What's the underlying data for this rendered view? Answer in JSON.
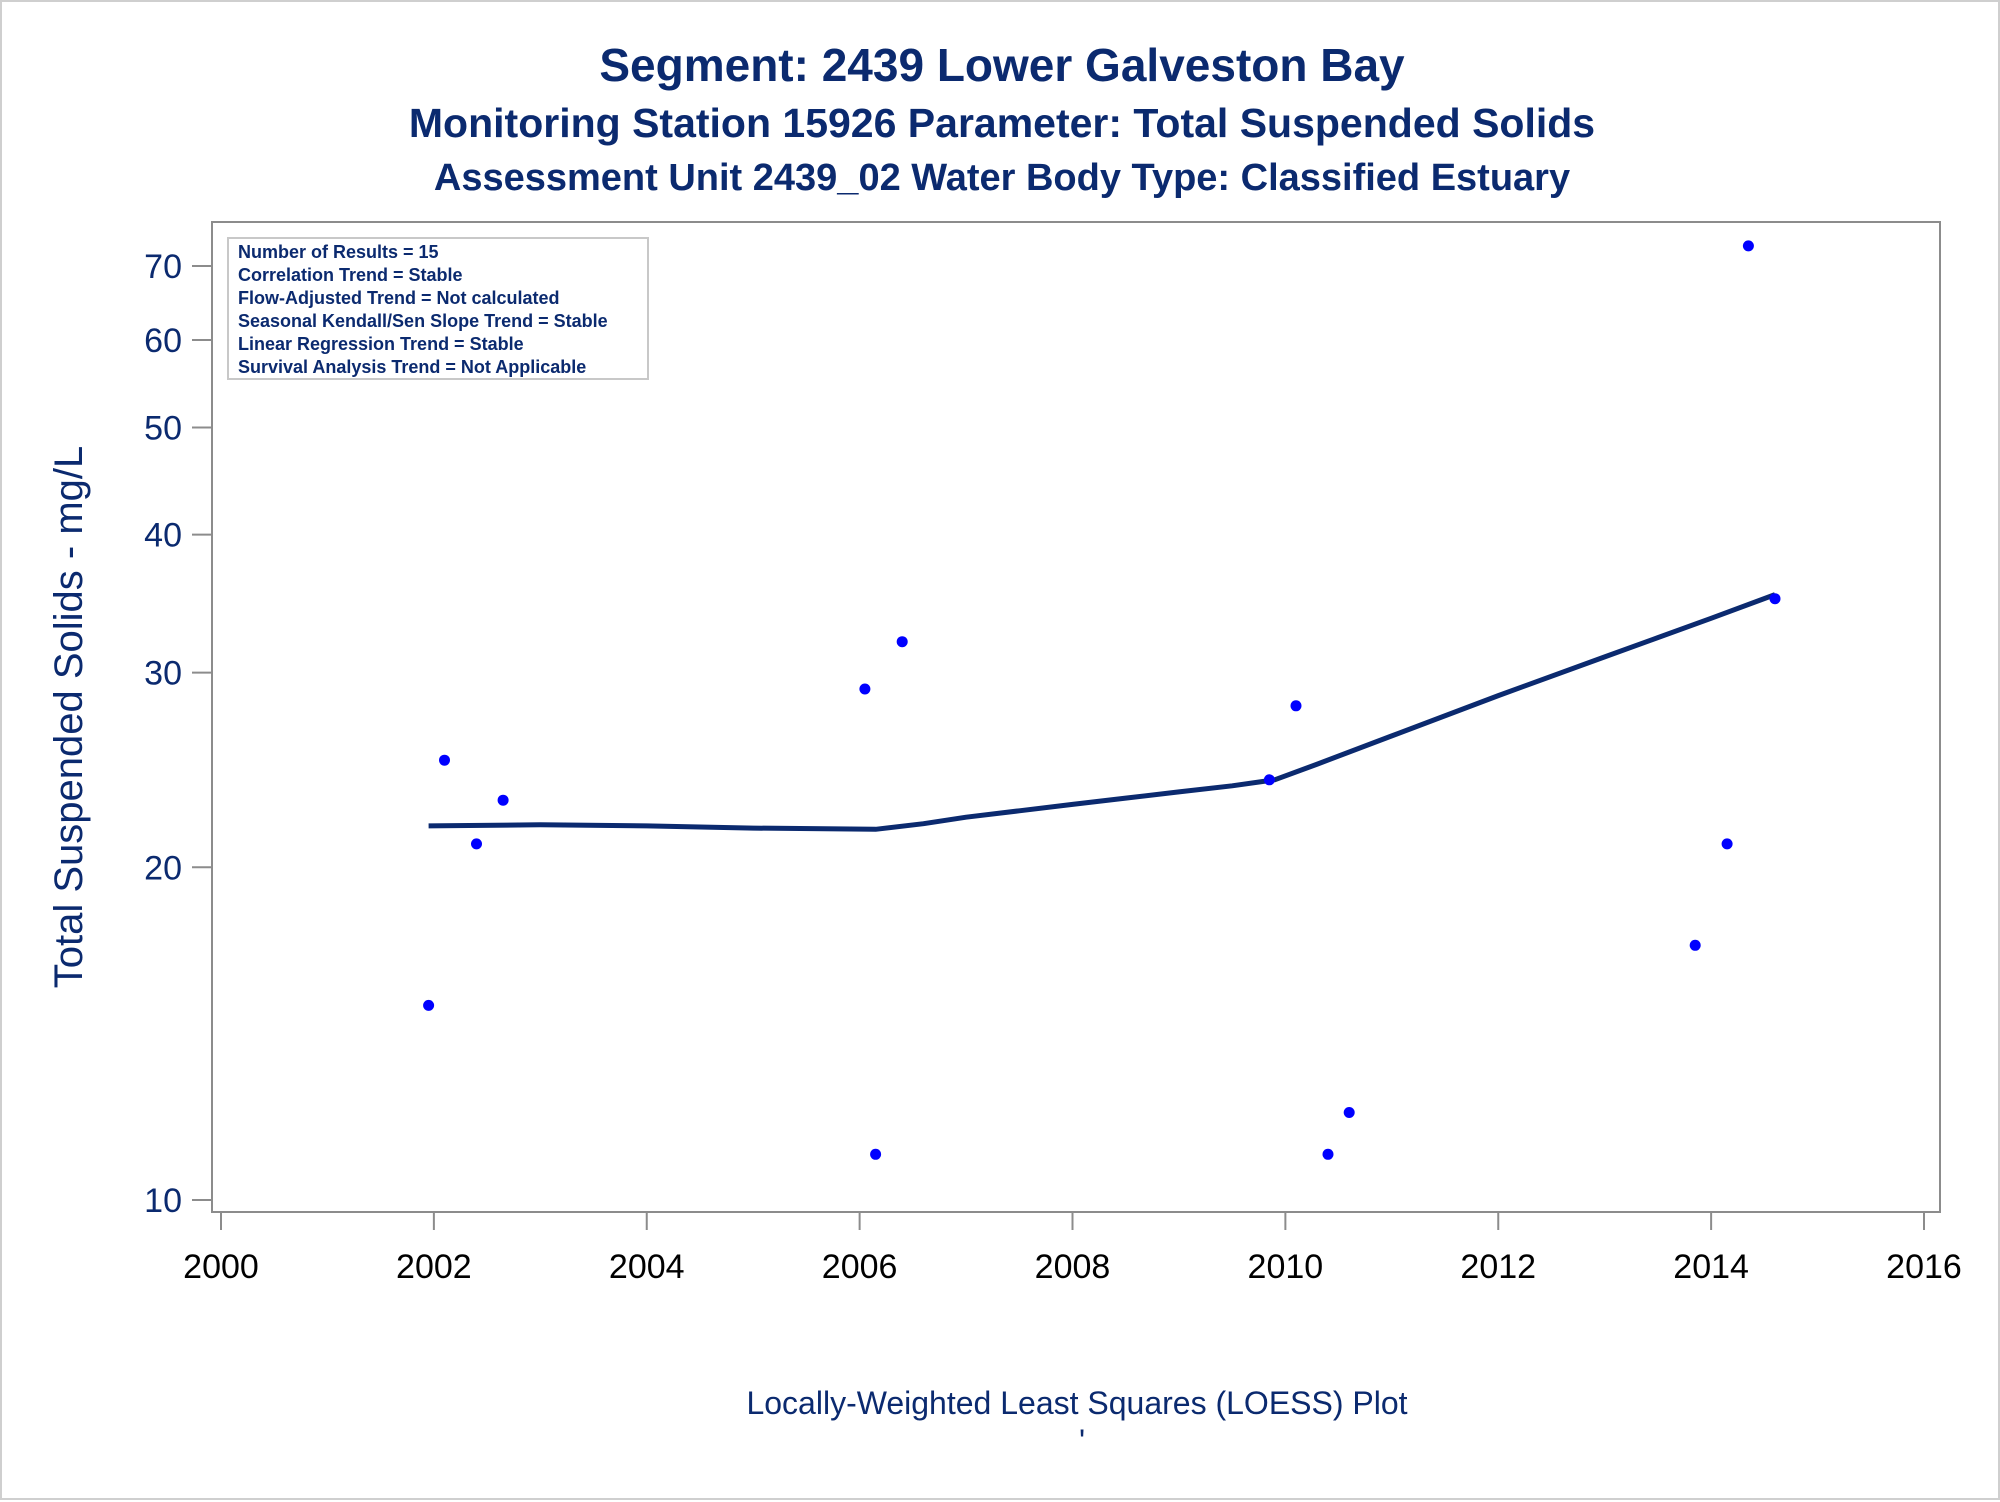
{
  "title": "Segment: 2439  Lower Galveston Bay",
  "subtitle": "Monitoring Station 15926 Parameter: Total Suspended Solids",
  "subtitle2": "Assessment Unit 2439_02   Water Body Type: Classified Estuary",
  "footnote": "Locally-Weighted Least Squares (LOESS) Plot",
  "footnote_mark": "'",
  "stats_box": [
    "Number of Results = 15",
    "Correlation Trend = Stable",
    "Flow-Adjusted Trend = Not calculated",
    "Seasonal Kendall/Sen Slope Trend = Stable",
    "Linear Regression Trend = Stable",
    "Survival Analysis Trend = Not Applicable"
  ],
  "colors": {
    "text": "#0b2a6f",
    "points": "#0000ff",
    "loess_line": "#0b2a6f",
    "axes": "#8c8c8c"
  },
  "chart_data": {
    "type": "scatter",
    "title": "Segment: 2439  Lower Galveston Bay",
    "xlabel": "",
    "ylabel": "Total Suspended Solids - mg/L",
    "xlim": [
      2000,
      2016
    ],
    "ylim": [
      10,
      75
    ],
    "yscale": "log",
    "xticks": [
      "2000",
      "2002",
      "2004",
      "2006",
      "2008",
      "2010",
      "2012",
      "2014",
      "2016"
    ],
    "yticks": [
      "10",
      "20",
      "30",
      "40",
      "50",
      "60",
      "70"
    ],
    "grid": false,
    "points": [
      {
        "x": 2001.95,
        "y": 15
      },
      {
        "x": 2002.1,
        "y": 25
      },
      {
        "x": 2002.4,
        "y": 21
      },
      {
        "x": 2002.65,
        "y": 23
      },
      {
        "x": 2006.05,
        "y": 29
      },
      {
        "x": 2006.15,
        "y": 11
      },
      {
        "x": 2006.4,
        "y": 32
      },
      {
        "x": 2009.85,
        "y": 24
      },
      {
        "x": 2010.1,
        "y": 28
      },
      {
        "x": 2010.4,
        "y": 11
      },
      {
        "x": 2010.6,
        "y": 12
      },
      {
        "x": 2013.85,
        "y": 17
      },
      {
        "x": 2014.15,
        "y": 21
      },
      {
        "x": 2014.35,
        "y": 73
      },
      {
        "x": 2014.6,
        "y": 35
      }
    ],
    "loess": [
      {
        "x": 2001.95,
        "y": 21.8
      },
      {
        "x": 2003.0,
        "y": 21.85
      },
      {
        "x": 2004.0,
        "y": 21.8
      },
      {
        "x": 2005.0,
        "y": 21.7
      },
      {
        "x": 2006.15,
        "y": 21.65
      },
      {
        "x": 2006.6,
        "y": 21.9
      },
      {
        "x": 2007.0,
        "y": 22.2
      },
      {
        "x": 2007.5,
        "y": 22.5
      },
      {
        "x": 2008.0,
        "y": 22.8
      },
      {
        "x": 2008.5,
        "y": 23.1
      },
      {
        "x": 2009.0,
        "y": 23.4
      },
      {
        "x": 2009.5,
        "y": 23.7
      },
      {
        "x": 2009.9,
        "y": 24.0
      },
      {
        "x": 2010.3,
        "y": 24.8
      },
      {
        "x": 2011.0,
        "y": 26.3
      },
      {
        "x": 2012.0,
        "y": 28.6
      },
      {
        "x": 2013.0,
        "y": 31.0
      },
      {
        "x": 2014.0,
        "y": 33.6
      },
      {
        "x": 2014.6,
        "y": 35.3
      }
    ]
  }
}
